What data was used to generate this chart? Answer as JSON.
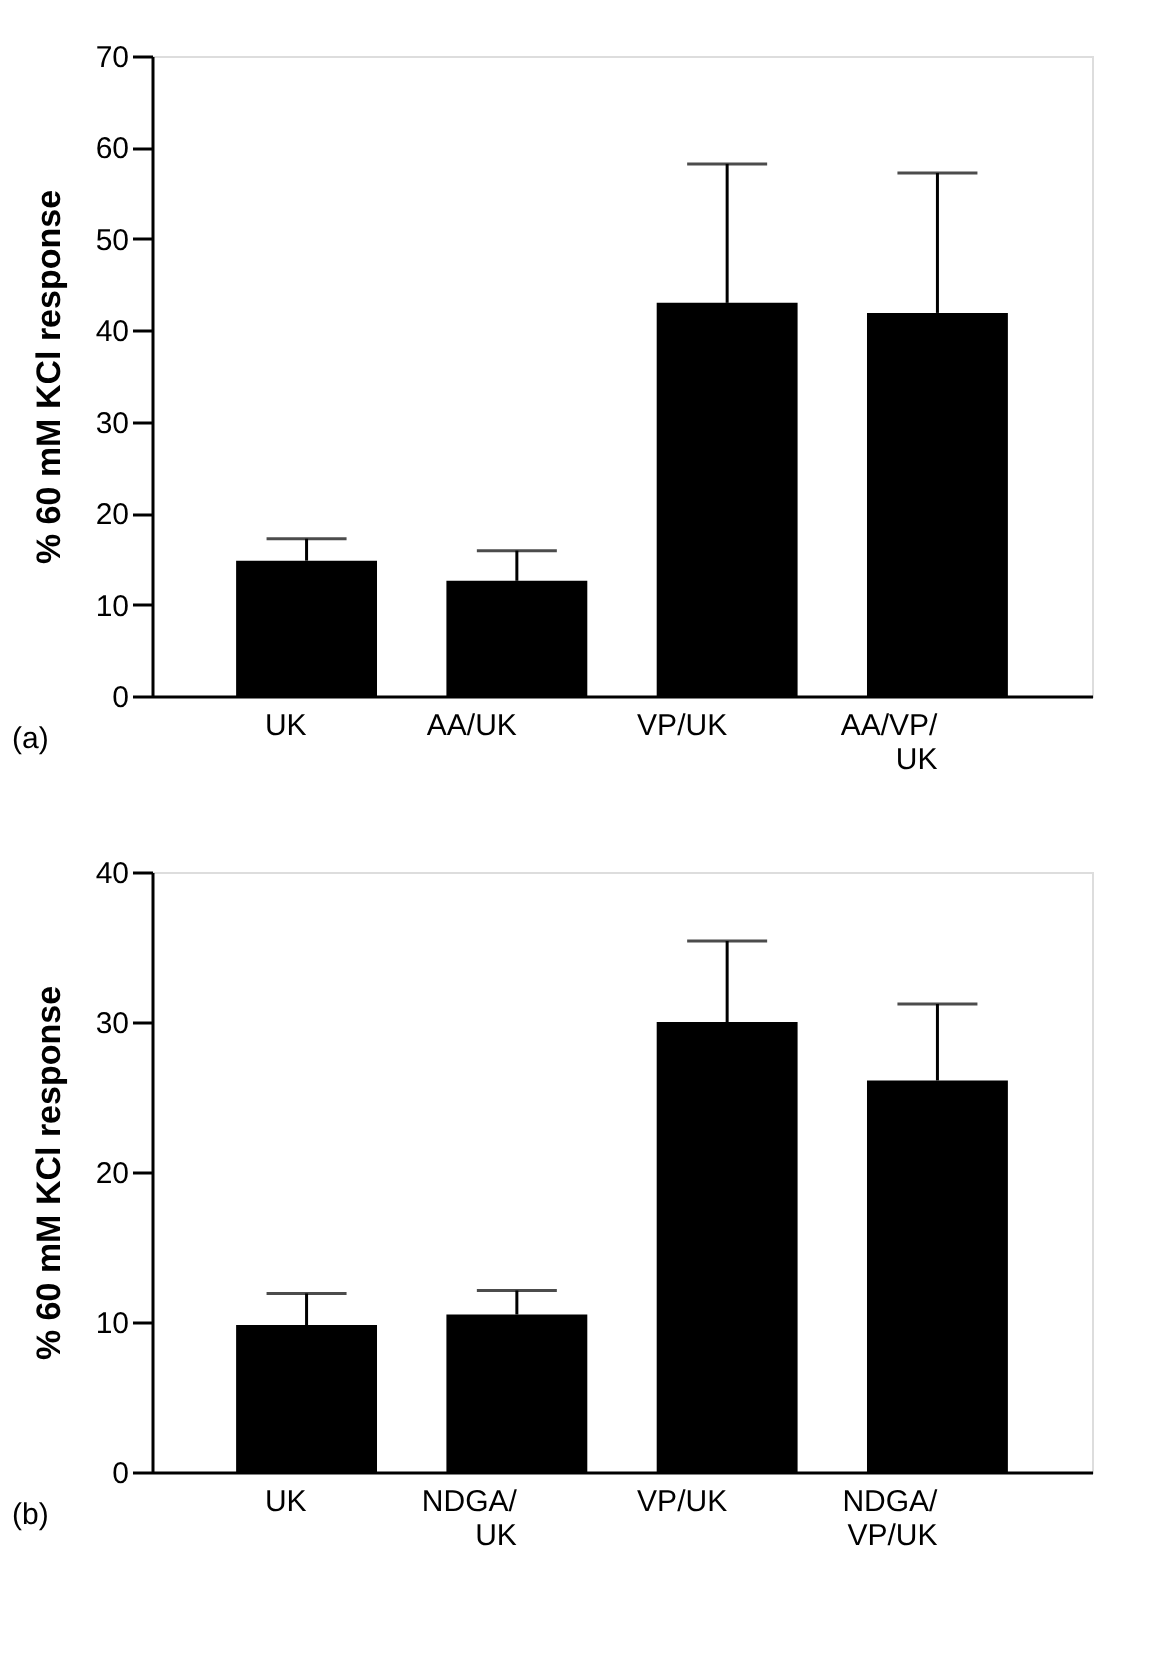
{
  "chart_data": [
    {
      "type": "bar",
      "ylabel": "% 60 mM KCl response",
      "categories": [
        "UK",
        "AA/UK",
        "VP/UK",
        "AA/VP/\nUK"
      ],
      "values": [
        14.8,
        12.6,
        43.0,
        41.9
      ],
      "errors": [
        [
          14.8,
          17.2
        ],
        [
          12.6,
          15.9
        ],
        [
          43.0,
          58.2
        ],
        [
          41.9,
          57.2
        ]
      ],
      "color": "#000000",
      "ylim": [
        0,
        70
      ],
      "yticks": [
        0,
        10,
        20,
        30,
        40,
        50,
        60,
        70
      ],
      "grid": false,
      "annotations": [
        "(a)"
      ]
    },
    {
      "type": "bar",
      "ylabel": "% 60 mM KCl response",
      "categories": [
        "UK",
        "NDGA/\nUK",
        "VP/UK",
        "NDGA/\nVP/UK"
      ],
      "values": [
        9.8,
        10.5,
        30.0,
        26.1
      ],
      "errors": [
        [
          9.8,
          11.9
        ],
        [
          10.5,
          12.1
        ],
        [
          30.0,
          35.4
        ],
        [
          26.1,
          31.2
        ]
      ],
      "color": "#000000",
      "ylim": [
        0,
        40
      ],
      "yticks": [
        0,
        10,
        20,
        30,
        40
      ],
      "grid": false,
      "annotations": [
        "(b)"
      ]
    }
  ]
}
